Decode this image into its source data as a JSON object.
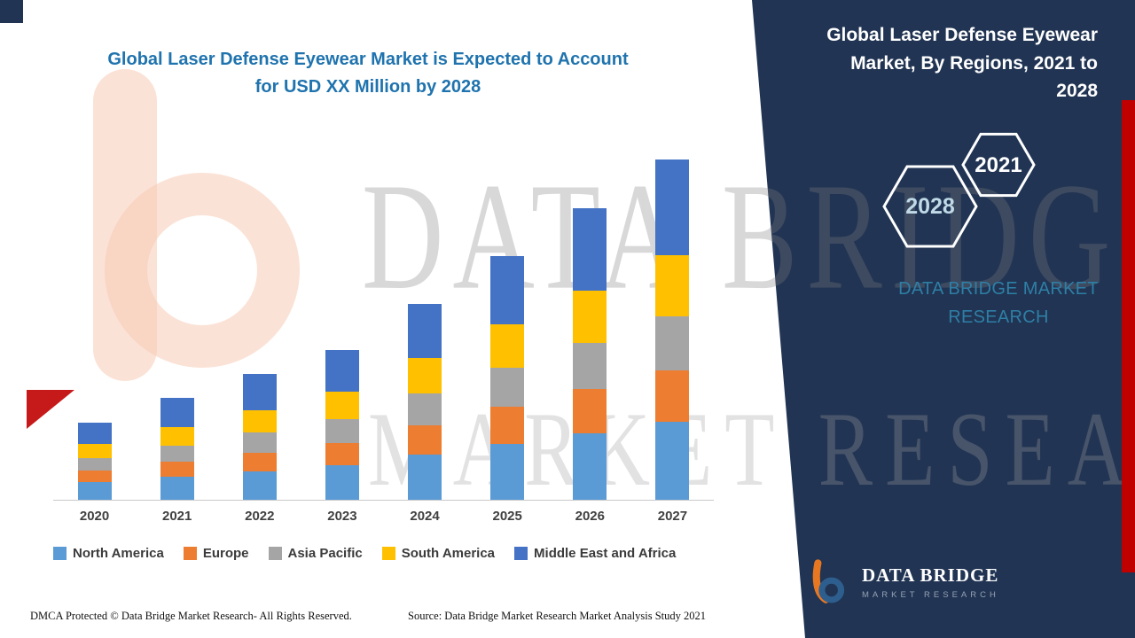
{
  "colors": {
    "navy_panel": "#213453",
    "red_accent": "#C00000",
    "title_blue": "#1F73AE",
    "brand_teal": "#2E7FA6",
    "axis_line": "#C9C9C9"
  },
  "header": {
    "title_line1": "Global Laser Defense Eyewear Market is Expected to Account",
    "title_line2": "for USD XX Million by 2028"
  },
  "side_panel": {
    "title": "Global Laser Defense Eyewear Market, By Regions, 2021 to 2028",
    "hexagons": [
      {
        "year": "2028"
      },
      {
        "year": "2021"
      }
    ],
    "brand_line1": "DATA BRIDGE MARKET",
    "brand_line2": "RESEARCH"
  },
  "watermark": {
    "line1": "DATA BRIDGE",
    "line2": "MARKET RESEARCH"
  },
  "logo": {
    "name": "DATA BRIDGE",
    "tagline": "MARKET RESEARCH"
  },
  "footer": {
    "dmca": "DMCA Protected © Data Bridge Market Research- All Rights Reserved.",
    "source": "Source: Data Bridge Market Research Market Analysis Study 2021"
  },
  "chart_data": {
    "type": "bar",
    "stacked": true,
    "title": "Global Laser Defense Eyewear Market is Expected to Account for USD XX Million by 2028",
    "xlabel": "",
    "ylabel": "",
    "value_axis_shown": false,
    "legend_position": "bottom",
    "values_note": "segment values estimated from bar heights; source masks totals as USD XX Million",
    "categories": [
      "2020",
      "2021",
      "2022",
      "2023",
      "2024",
      "2025",
      "2026",
      "2027"
    ],
    "series": [
      {
        "name": "North America",
        "color": "#5B9BD5",
        "values": [
          20,
          26,
          32,
          39,
          51,
          63,
          75,
          88
        ]
      },
      {
        "name": "Europe",
        "color": "#ED7D31",
        "values": [
          13,
          17,
          21,
          25,
          33,
          41,
          49,
          57
        ]
      },
      {
        "name": "Asia Pacific",
        "color": "#A5A5A5",
        "values": [
          14,
          18,
          23,
          27,
          35,
          44,
          52,
          61
        ]
      },
      {
        "name": "South America",
        "color": "#FFC000",
        "values": [
          16,
          21,
          25,
          30,
          40,
          49,
          59,
          69
        ]
      },
      {
        "name": "Middle East and Africa",
        "color": "#4472C4",
        "values": [
          24,
          32,
          40,
          47,
          61,
          77,
          92,
          107
        ]
      }
    ],
    "totals": [
      87,
      114,
      141,
      168,
      220,
      274,
      327,
      382
    ],
    "ylim": [
      0,
      390
    ]
  }
}
